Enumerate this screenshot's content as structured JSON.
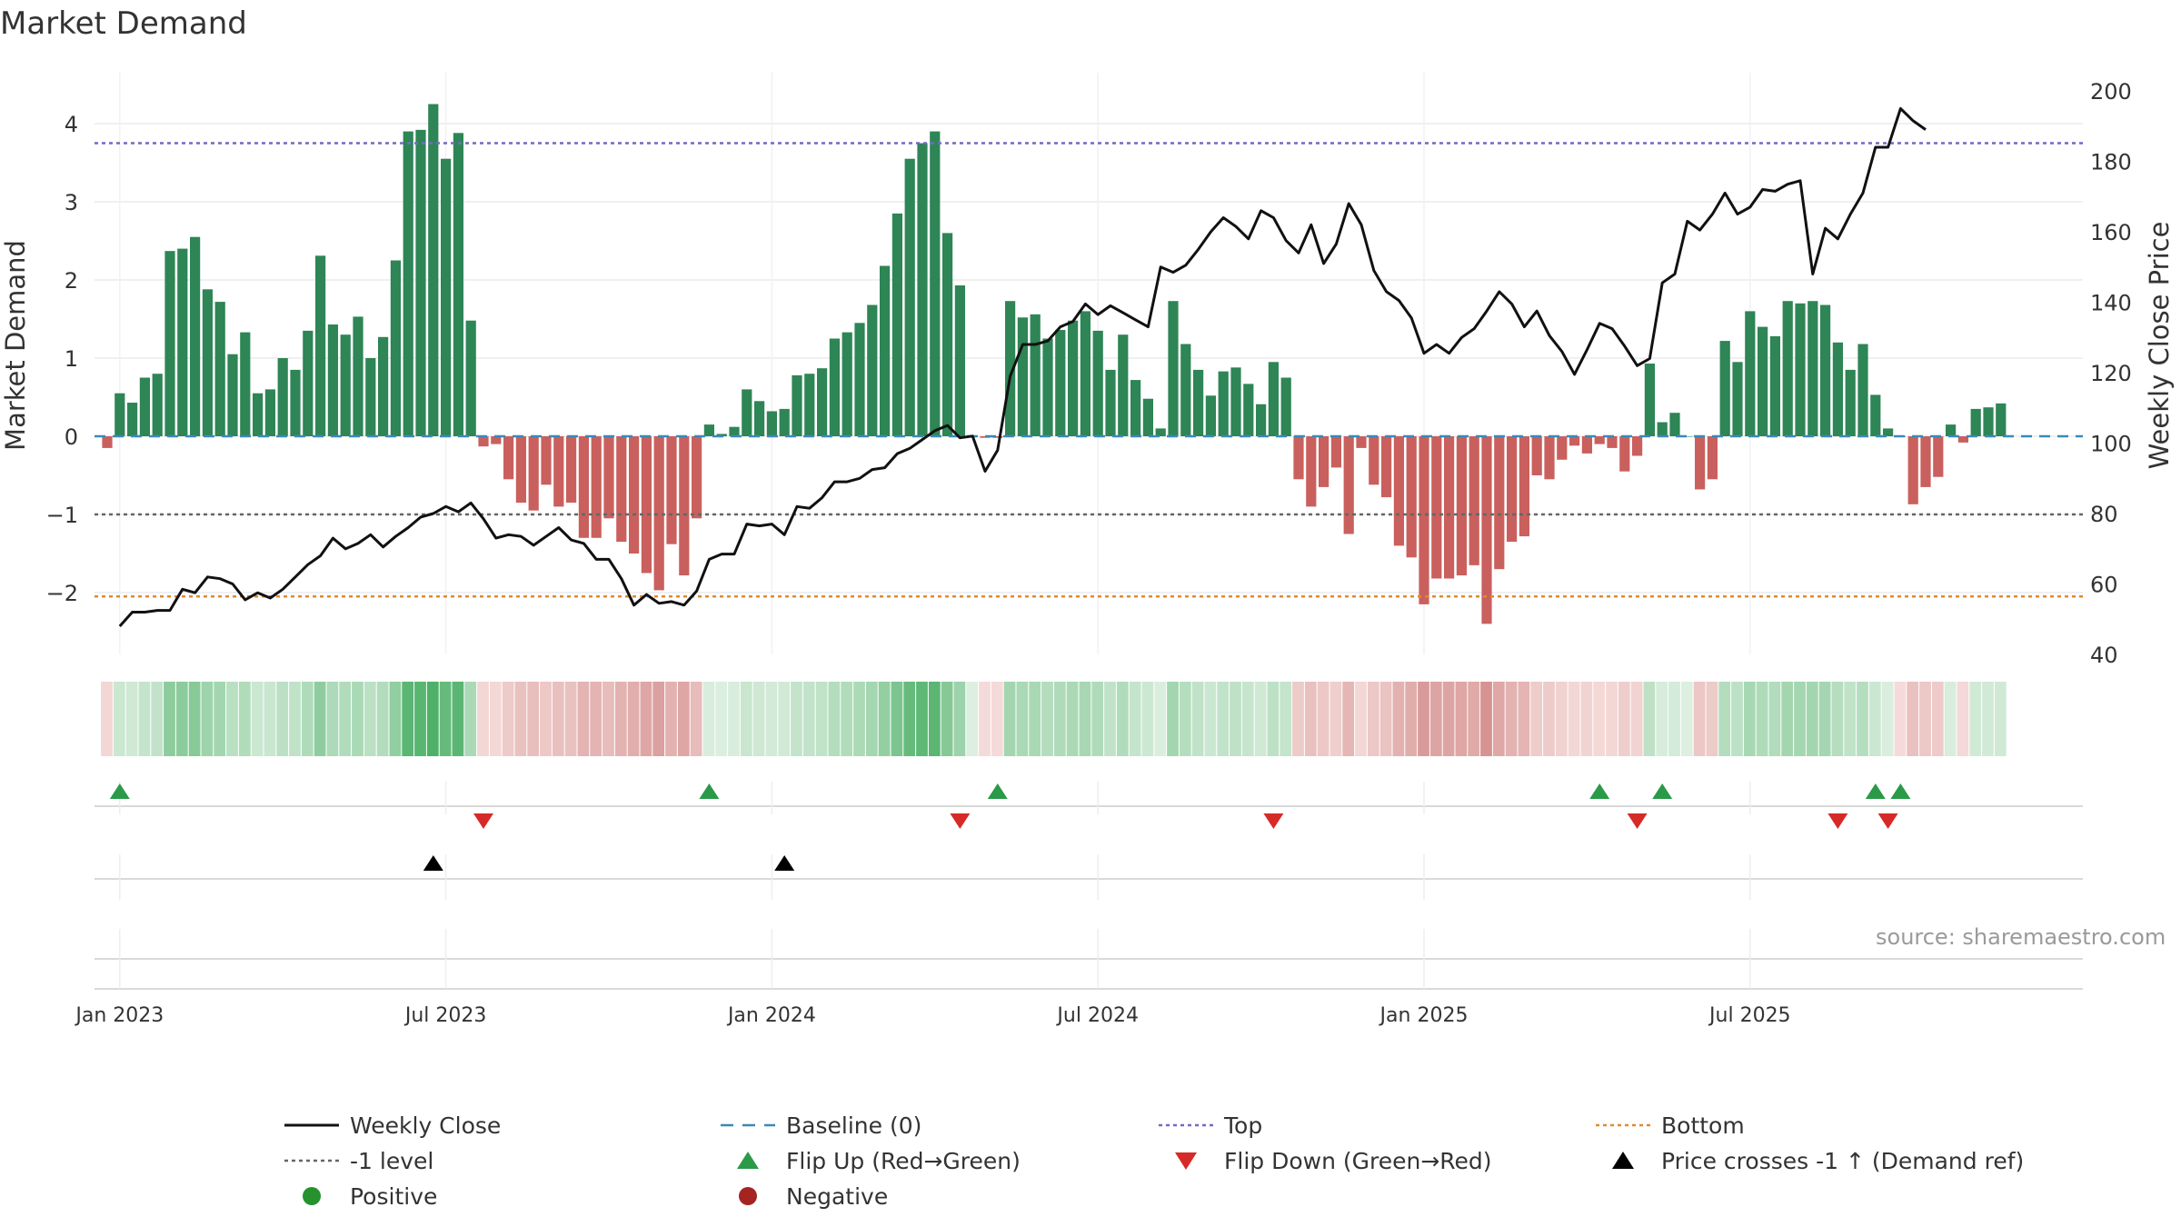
{
  "chart_data": {
    "type": "bar",
    "title": "Market Demand",
    "ylabel": "Market Demand",
    "y2label": "Weekly Close Price",
    "ylim": [
      -2.75,
      4.6
    ],
    "y2lim": [
      40,
      200
    ],
    "yticks": [
      -2,
      -1,
      0,
      1,
      2,
      3,
      4
    ],
    "y2ticks": [
      40,
      60,
      80,
      100,
      120,
      140,
      160,
      180,
      200
    ],
    "x_start_index": -1,
    "x_ticks": [
      {
        "label": "Jan 2023",
        "index": 0
      },
      {
        "label": "Jul 2023",
        "index": 26
      },
      {
        "label": "Jan 2024",
        "index": 52
      },
      {
        "label": "Jul 2024",
        "index": 78
      },
      {
        "label": "Jan 2025",
        "index": 104
      },
      {
        "label": "Jul 2025",
        "index": 130
      }
    ],
    "levels": {
      "top": 3.75,
      "minus_one": -1,
      "bottom": -2.05,
      "baseline": 0
    },
    "demand": [
      -0.15,
      0.55,
      0.43,
      0.75,
      0.8,
      2.37,
      2.4,
      2.55,
      1.88,
      1.72,
      1.05,
      1.33,
      0.55,
      0.6,
      1.0,
      0.85,
      1.35,
      2.31,
      1.43,
      1.3,
      1.53,
      1.0,
      1.27,
      2.25,
      3.9,
      3.92,
      4.25,
      3.55,
      3.88,
      1.48,
      -0.13,
      -0.1,
      -0.55,
      -0.85,
      -0.95,
      -0.62,
      -0.9,
      -0.85,
      -1.3,
      -1.3,
      -1.05,
      -1.35,
      -1.5,
      -1.75,
      -1.97,
      -1.38,
      -1.78,
      -1.05,
      0.15,
      0.03,
      0.12,
      0.6,
      0.45,
      0.32,
      0.35,
      0.78,
      0.8,
      0.87,
      1.25,
      1.33,
      1.45,
      1.68,
      2.18,
      2.85,
      3.55,
      3.75,
      3.9,
      2.6,
      1.93,
      0.0,
      -0.02,
      -0.02,
      1.73,
      1.52,
      1.56,
      1.25,
      1.36,
      1.48,
      1.6,
      1.35,
      0.85,
      1.3,
      0.72,
      0.48,
      0.1,
      1.73,
      1.18,
      0.85,
      0.52,
      0.83,
      0.88,
      0.67,
      0.41,
      0.95,
      0.75,
      -0.55,
      -0.9,
      -0.65,
      -0.4,
      -1.25,
      -0.15,
      -0.62,
      -0.78,
      -1.4,
      -1.55,
      -2.15,
      -1.82,
      -1.82,
      -1.78,
      -1.65,
      -2.4,
      -1.7,
      -1.35,
      -1.28,
      -0.5,
      -0.55,
      -0.3,
      -0.12,
      -0.22,
      -0.1,
      -0.15,
      -0.45,
      -0.25,
      0.93,
      0.18,
      0.3,
      0.0,
      -0.68,
      -0.55,
      1.22,
      0.95,
      1.6,
      1.4,
      1.28,
      1.73,
      1.7,
      1.73,
      1.68,
      1.2,
      0.85,
      1.18,
      0.53,
      0.1,
      -0.01,
      -0.87,
      -0.65,
      -0.52,
      0.15,
      -0.08,
      0.35,
      0.37,
      0.42
    ],
    "price": [
      48,
      52,
      52,
      52.5,
      52.5,
      58.5,
      57.5,
      62,
      61.5,
      60,
      55.5,
      57.5,
      56,
      58.5,
      62,
      65.5,
      68,
      73,
      70,
      71.5,
      74,
      70.5,
      73.5,
      76,
      79,
      80,
      82,
      80.5,
      83,
      78.5,
      73,
      74,
      73.5,
      71,
      73.5,
      76,
      72.5,
      71.5,
      67,
      67,
      61.5,
      54,
      57,
      54.5,
      55,
      54,
      58,
      67,
      68.5,
      68.5,
      77,
      76.5,
      77,
      74,
      82,
      81.5,
      84.5,
      89,
      89,
      90,
      92.5,
      93,
      97,
      98.5,
      101,
      103.5,
      105,
      101.5,
      102,
      92,
      98,
      119,
      128,
      128,
      129,
      133,
      134.5,
      139.5,
      136.5,
      139,
      137,
      135,
      133,
      150,
      148.5,
      150.5,
      155,
      160,
      164,
      161.5,
      158,
      166,
      164,
      157.5,
      154,
      162,
      151,
      156.5,
      168,
      162,
      149,
      143,
      140.5,
      135.5,
      125.5,
      128,
      125.5,
      130,
      132.5,
      137.5,
      143,
      139.5,
      133,
      137.5,
      130.5,
      126,
      119.5,
      126.5,
      134,
      132.5,
      127.5,
      122,
      124,
      145.5,
      148,
      163,
      160.5,
      165,
      171,
      165,
      167,
      172,
      171.5,
      173.5,
      174.5,
      148,
      161,
      158,
      165,
      171,
      184,
      184,
      195,
      191.5,
      189
    ],
    "flips": {
      "up": [
        0,
        47,
        70,
        118,
        123,
        140,
        142
      ],
      "down": [
        29,
        67,
        92,
        121,
        137,
        141
      ],
      "cross": [
        25,
        53
      ]
    },
    "legend": [
      {
        "label": "Weekly Close",
        "type": "line-solid",
        "color": "#111111"
      },
      {
        "label": "Baseline (0)",
        "type": "line-dash",
        "color": "#3a89b8"
      },
      {
        "label": "Top",
        "type": "line-dot",
        "color": "#7469c6"
      },
      {
        "label": "Bottom",
        "type": "line-dot",
        "color": "#e08b2c"
      },
      {
        "label": "-1 level",
        "type": "line-dot",
        "color": "#666666"
      },
      {
        "label": "Flip Up (Red→Green)",
        "type": "tri-up",
        "color": "#2a9a48"
      },
      {
        "label": "Flip Down (Green→Red)",
        "type": "tri-down",
        "color": "#d62a28"
      },
      {
        "label": "Price crosses -1 ↑ (Demand ref)",
        "type": "tri-up",
        "color": "#000000"
      },
      {
        "label": "Positive",
        "type": "dot",
        "color": "#26922e"
      },
      {
        "label": "Negative",
        "type": "dot",
        "color": "#a52422"
      }
    ]
  },
  "source": "source: sharemaestro.com",
  "colors": {
    "positive_bar": "#2e8555",
    "negative_bar": "#c9605d",
    "price_line": "#111111",
    "baseline": "#3a89b8",
    "top": "#7469c6",
    "minus_one": "#666666",
    "bottom": "#e08b2c",
    "flip_up": "#2a9a48",
    "flip_down": "#d62a28",
    "cross": "#000000"
  }
}
